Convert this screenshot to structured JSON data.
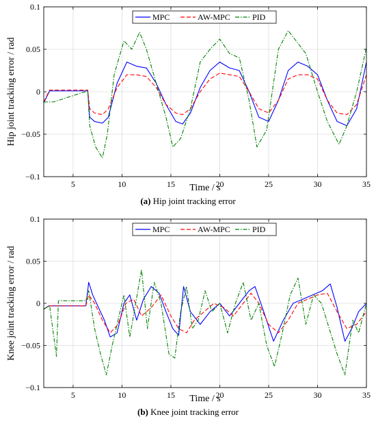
{
  "chart_data": [
    {
      "type": "line",
      "caption_tag": "(a)",
      "caption_text": " Hip joint tracking error",
      "xlabel": "Time / s",
      "ylabel": "Hip joint tracking error / rad",
      "xlim": [
        2,
        35
      ],
      "ylim": [
        -0.1,
        0.1
      ],
      "xticks": [
        5,
        10,
        15,
        20,
        25,
        30,
        35
      ],
      "yticks": [
        -0.1,
        -0.05,
        0,
        0.05,
        0.1
      ],
      "ytick_labels": [
        "−0.1",
        "−0.05",
        "0",
        "0.05",
        "0.1"
      ],
      "grid": true,
      "legend_position": "top-center",
      "series": [
        {
          "name": "MPC",
          "color": "#0000ff",
          "dash": "solid",
          "x": [
            2,
            2.6,
            6.5,
            6.7,
            7.2,
            8.0,
            8.6,
            9.5,
            10.5,
            11.5,
            12.5,
            13.5,
            14.5,
            15.5,
            16.2,
            17.0,
            18.0,
            19.0,
            20.0,
            21.0,
            22.0,
            23.0,
            24.0,
            25.0,
            26.0,
            27.0,
            28.0,
            29.0,
            30.0,
            31.0,
            32.0,
            33.0,
            34.0,
            35.0
          ],
          "y": [
            -0.013,
            0.001,
            0.001,
            -0.03,
            -0.035,
            -0.037,
            -0.03,
            0.01,
            0.035,
            0.03,
            0.028,
            0.01,
            -0.015,
            -0.035,
            -0.038,
            -0.025,
            0.005,
            0.025,
            0.035,
            0.028,
            0.025,
            0.0,
            -0.03,
            -0.035,
            -0.01,
            0.025,
            0.035,
            0.03,
            0.02,
            -0.01,
            -0.035,
            -0.04,
            -0.02,
            0.035
          ]
        },
        {
          "name": "AW-MPC",
          "color": "#ff0000",
          "dash": "6,3",
          "x": [
            2,
            2.6,
            6.5,
            6.7,
            7.2,
            8.0,
            8.6,
            9.5,
            10.5,
            11.5,
            12.5,
            13.5,
            14.5,
            15.5,
            16.2,
            17.0,
            18.0,
            19.0,
            20.0,
            21.0,
            22.0,
            23.0,
            24.0,
            25.0,
            26.0,
            27.0,
            28.0,
            29.0,
            30.0,
            31.0,
            32.0,
            33.0,
            34.0,
            35.0
          ],
          "y": [
            -0.012,
            0.002,
            0.002,
            -0.02,
            -0.025,
            -0.027,
            -0.02,
            0.005,
            0.02,
            0.02,
            0.018,
            0.005,
            -0.015,
            -0.025,
            -0.027,
            -0.02,
            0.0,
            0.015,
            0.022,
            0.02,
            0.018,
            0.0,
            -0.02,
            -0.025,
            -0.01,
            0.015,
            0.02,
            0.02,
            0.015,
            -0.01,
            -0.025,
            -0.027,
            -0.015,
            0.02
          ]
        },
        {
          "name": "PID",
          "color": "#008000",
          "dash": "6,2,1.5,2",
          "x": [
            2,
            3.0,
            6.5,
            6.7,
            7.3,
            8.0,
            8.5,
            9.2,
            10.2,
            11.0,
            11.8,
            12.5,
            13.5,
            14.5,
            15.2,
            16.0,
            17.0,
            18.0,
            19.0,
            20.0,
            21.0,
            22.0,
            23.0,
            23.8,
            24.8,
            26.0,
            27.0,
            27.8,
            28.8,
            30.0,
            31.0,
            32.2,
            33.0,
            34.0,
            35.0
          ],
          "y": [
            -0.012,
            -0.012,
            0.001,
            -0.04,
            -0.065,
            -0.078,
            -0.05,
            0.02,
            0.06,
            0.05,
            0.07,
            0.05,
            0.01,
            -0.03,
            -0.065,
            -0.055,
            -0.02,
            0.035,
            0.05,
            0.062,
            0.045,
            0.04,
            -0.01,
            -0.065,
            -0.045,
            0.05,
            0.072,
            0.06,
            0.045,
            0.0,
            -0.035,
            -0.062,
            -0.04,
            0.0,
            0.052
          ]
        }
      ]
    },
    {
      "type": "line",
      "caption_tag": "(b)",
      "caption_text": " Knee joint tracking error",
      "xlabel": "Time / s",
      "ylabel": "Knee joint tracking error / rad",
      "xlim": [
        2,
        35
      ],
      "ylim": [
        -0.1,
        0.1
      ],
      "xticks": [
        5,
        10,
        15,
        20,
        25,
        30,
        35
      ],
      "yticks": [
        -0.1,
        -0.05,
        0,
        0.05,
        0.1
      ],
      "ytick_labels": [
        "−0.1",
        "−0.05",
        "0",
        "0.05",
        "0.1"
      ],
      "grid": true,
      "legend_position": "top-center",
      "series": [
        {
          "name": "MPC",
          "color": "#0000ff",
          "dash": "solid",
          "x": [
            2,
            2.5,
            6.3,
            6.6,
            7.0,
            7.6,
            8.2,
            8.8,
            9.5,
            10.2,
            10.8,
            11.5,
            12.2,
            13.0,
            13.8,
            14.5,
            15.2,
            15.8,
            16.3,
            17.0,
            18.0,
            19.0,
            20.0,
            21.0,
            22.0,
            23.0,
            23.6,
            24.5,
            25.5,
            26.5,
            27.5,
            28.5,
            29.5,
            30.5,
            31.3,
            32.0,
            32.8,
            33.5,
            34.2,
            35.0
          ],
          "y": [
            -0.007,
            -0.003,
            -0.003,
            0.025,
            0.01,
            -0.005,
            -0.02,
            -0.04,
            -0.035,
            0.0,
            0.01,
            -0.02,
            0.005,
            0.02,
            0.012,
            -0.01,
            -0.03,
            -0.038,
            0.02,
            -0.01,
            -0.025,
            -0.01,
            0.0,
            -0.015,
            0.0,
            0.015,
            0.02,
            -0.01,
            -0.045,
            -0.02,
            0.0,
            0.005,
            0.01,
            0.015,
            0.023,
            -0.005,
            -0.045,
            -0.03,
            -0.01,
            0.0
          ]
        },
        {
          "name": "AW-MPC",
          "color": "#ff0000",
          "dash": "6,3",
          "x": [
            2,
            2.5,
            6.3,
            6.6,
            7.2,
            8.0,
            8.8,
            9.6,
            10.4,
            11.2,
            12.0,
            13.0,
            14.0,
            15.0,
            15.8,
            16.6,
            17.4,
            18.4,
            19.4,
            20.4,
            21.4,
            22.4,
            23.2,
            24.0,
            25.0,
            26.0,
            27.0,
            28.0,
            29.0,
            30.0,
            31.0,
            32.0,
            33.0,
            34.0,
            35.0
          ],
          "y": [
            -0.007,
            -0.003,
            -0.003,
            0.01,
            0.0,
            -0.02,
            -0.035,
            -0.025,
            0.0,
            0.005,
            -0.015,
            -0.005,
            0.01,
            -0.015,
            -0.03,
            -0.035,
            -0.02,
            -0.01,
            0.0,
            -0.005,
            -0.015,
            0.0,
            0.012,
            0.0,
            -0.025,
            -0.035,
            -0.02,
            0.0,
            0.005,
            0.01,
            0.012,
            -0.01,
            -0.03,
            -0.025,
            -0.01
          ]
        },
        {
          "name": "PID",
          "color": "#008000",
          "dash": "6,2,1.5,2",
          "x": [
            2,
            2.6,
            3.3,
            3.5,
            6.3,
            6.6,
            7.2,
            7.8,
            8.4,
            9.0,
            9.6,
            10.2,
            10.8,
            11.4,
            12.0,
            12.6,
            13.3,
            14.0,
            14.8,
            15.4,
            16.0,
            16.6,
            17.2,
            17.8,
            18.5,
            19.2,
            20.0,
            20.8,
            21.6,
            22.4,
            23.2,
            24.0,
            24.8,
            25.6,
            26.4,
            27.2,
            28.0,
            28.8,
            29.6,
            30.4,
            31.2,
            32.0,
            32.8,
            33.6,
            34.2,
            35.0
          ],
          "y": [
            -0.007,
            -0.003,
            -0.063,
            0.003,
            0.003,
            0.015,
            -0.03,
            -0.06,
            -0.085,
            -0.05,
            -0.02,
            0.01,
            -0.04,
            0.0,
            0.04,
            -0.03,
            0.025,
            0.0,
            -0.06,
            -0.065,
            -0.01,
            0.02,
            -0.03,
            -0.02,
            0.015,
            -0.01,
            0.0,
            -0.035,
            0.0,
            0.025,
            -0.02,
            0.0,
            -0.05,
            -0.075,
            -0.035,
            0.01,
            0.03,
            -0.025,
            0.01,
            0.0,
            -0.03,
            -0.06,
            -0.085,
            -0.02,
            -0.035,
            0.0
          ]
        }
      ]
    }
  ]
}
